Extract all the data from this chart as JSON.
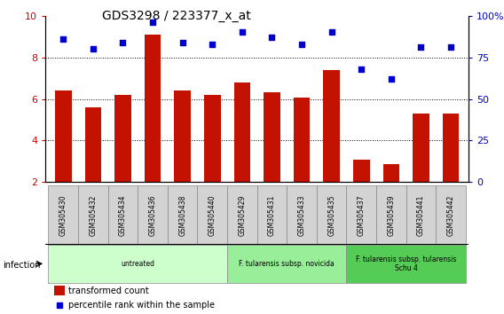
{
  "title": "GDS3298 / 223377_x_at",
  "samples": [
    "GSM305430",
    "GSM305432",
    "GSM305434",
    "GSM305436",
    "GSM305438",
    "GSM305440",
    "GSM305429",
    "GSM305431",
    "GSM305433",
    "GSM305435",
    "GSM305437",
    "GSM305439",
    "GSM305441",
    "GSM305442"
  ],
  "bar_values": [
    6.4,
    5.6,
    6.2,
    9.1,
    6.4,
    6.2,
    6.8,
    6.3,
    6.05,
    7.4,
    3.1,
    2.85,
    5.3,
    5.3
  ],
  "dot_values": [
    86,
    80,
    84,
    96,
    84,
    83,
    90,
    87,
    83,
    90,
    68,
    62,
    81,
    81
  ],
  "ylim_left": [
    2,
    10
  ],
  "ylim_right": [
    0,
    100
  ],
  "yticks_left": [
    2,
    4,
    6,
    8,
    10
  ],
  "yticks_right": [
    0,
    25,
    50,
    75,
    100
  ],
  "bar_color": "#C41200",
  "dot_color": "#0000CC",
  "groups": [
    {
      "label": "untreated",
      "start": 0,
      "end": 6,
      "color": "#CCFFCC"
    },
    {
      "label": "F. tularensis subsp. novicida",
      "start": 6,
      "end": 10,
      "color": "#99EE99"
    },
    {
      "label": "F. tularensis subsp. tularensis\nSchu 4",
      "start": 10,
      "end": 14,
      "color": "#55CC55"
    }
  ],
  "infection_label": "infection",
  "legend_bar_label": "transformed count",
  "legend_dot_label": "percentile rank within the sample",
  "tick_label_color_left": "#CC0000",
  "tick_label_color_right": "#0000CC",
  "bar_bottom": 2,
  "figsize": [
    5.68,
    3.54
  ],
  "dpi": 100
}
